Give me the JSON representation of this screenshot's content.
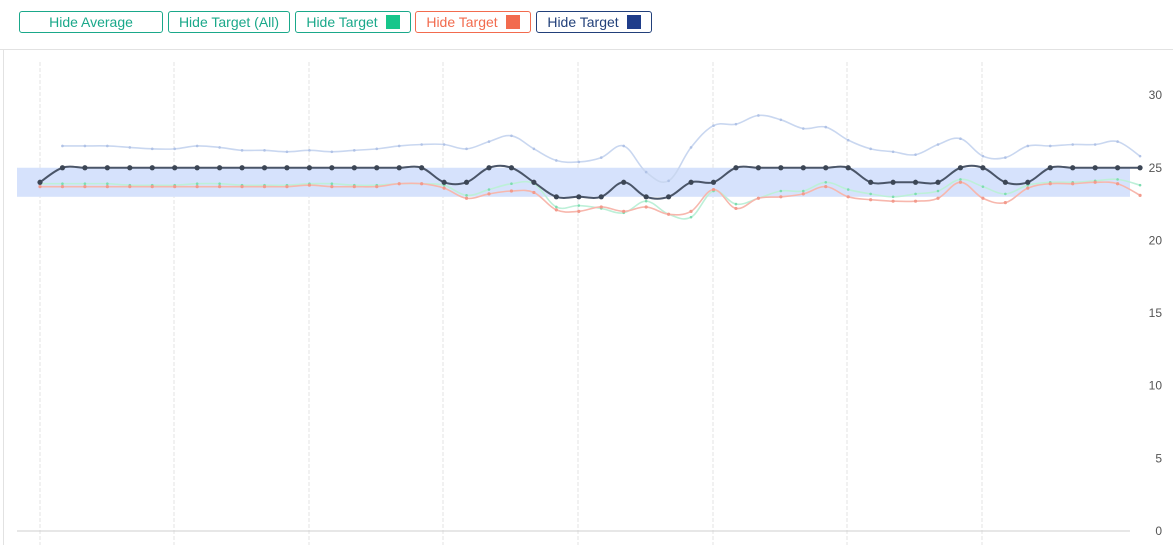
{
  "toolbar": {
    "hide_average": "Hide Average",
    "hide_target_all": "Hide Target (All)",
    "hide_target_green": "Hide Target",
    "hide_target_red": "Hide Target",
    "hide_target_navy": "Hide Target"
  },
  "colors": {
    "button_green": "#1aa88a",
    "button_red": "#f26b4e",
    "button_navy": "#22407a",
    "swatch_green": "#17c68b",
    "swatch_red": "#f26b4e",
    "swatch_navy": "#1f3d8a",
    "average_line": "#c9d7f0",
    "green_line": "#bdf0d8",
    "red_line": "#f7b7ad",
    "navy_line": "#4a5568",
    "target_band": "#d6e2fc"
  },
  "chart_data": {
    "type": "line",
    "ylim": [
      0,
      32
    ],
    "yticks": [
      "0",
      "5",
      "10",
      "15",
      "20",
      "25",
      "30"
    ],
    "grid": "vertical",
    "target_band": [
      23,
      25
    ],
    "series": [
      {
        "key": "average",
        "values": [
          null,
          26.5,
          26.5,
          26.5,
          26.4,
          26.3,
          26.3,
          26.5,
          26.4,
          26.2,
          26.2,
          26.1,
          26.2,
          26.1,
          26.2,
          26.3,
          26.5,
          26.6,
          26.6,
          26.3,
          26.8,
          27.2,
          26.3,
          25.5,
          25.4,
          25.7,
          26.5,
          24.7,
          24.1,
          26.4,
          27.9,
          28.0,
          28.6,
          28.3,
          27.7,
          27.8,
          26.9,
          26.3,
          26.1,
          25.9,
          26.6,
          27.0,
          25.8,
          25.7,
          26.5,
          26.5,
          26.6,
          26.6,
          26.8,
          25.8
        ]
      },
      {
        "key": "green",
        "values": [
          23.9,
          23.9,
          23.9,
          23.9,
          23.8,
          23.8,
          23.8,
          23.9,
          23.9,
          23.8,
          23.8,
          23.8,
          23.9,
          23.9,
          23.8,
          23.8,
          23.9,
          23.9,
          23.8,
          23.1,
          23.5,
          23.9,
          23.9,
          22.3,
          22.4,
          22.2,
          21.9,
          22.7,
          21.8,
          21.6,
          23.4,
          22.5,
          22.9,
          23.4,
          23.4,
          24.0,
          23.5,
          23.2,
          23.0,
          23.2,
          23.4,
          24.2,
          23.7,
          23.2,
          23.8,
          24.0,
          24.0,
          24.1,
          24.2,
          23.8
        ]
      },
      {
        "key": "red",
        "values": [
          23.7,
          23.7,
          23.7,
          23.7,
          23.7,
          23.7,
          23.7,
          23.7,
          23.7,
          23.7,
          23.7,
          23.7,
          23.8,
          23.7,
          23.7,
          23.7,
          23.9,
          23.9,
          23.6,
          22.9,
          23.2,
          23.4,
          23.3,
          22.1,
          22.0,
          22.3,
          22.0,
          22.3,
          21.8,
          22.0,
          23.5,
          22.2,
          22.9,
          23.0,
          23.2,
          23.7,
          23.0,
          22.8,
          22.7,
          22.7,
          22.9,
          24.0,
          22.9,
          22.6,
          23.6,
          23.9,
          23.9,
          24.0,
          23.9,
          23.1
        ]
      },
      {
        "key": "navy",
        "values": [
          24,
          25,
          25,
          25,
          25,
          25,
          25,
          25,
          25,
          25,
          25,
          25,
          25,
          25,
          25,
          25,
          25,
          25,
          24,
          24,
          25,
          25,
          24,
          23,
          23,
          23,
          24,
          23,
          23,
          24,
          24,
          25,
          25,
          25,
          25,
          25,
          25,
          24,
          24,
          24,
          24,
          25,
          25,
          24,
          24,
          25,
          25,
          25,
          25,
          25
        ]
      }
    ]
  }
}
